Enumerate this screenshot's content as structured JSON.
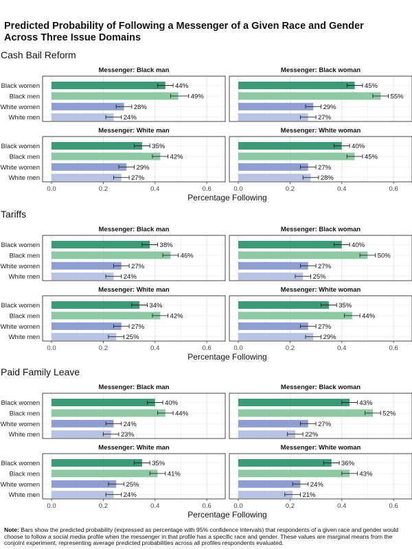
{
  "title_line1": "Predicted Probability of Following a Messenger of a Given Race and Gender",
  "title_line2": "Across Three Issue Domains",
  "x_axis_title": "Percentage Following",
  "note_label": "Note:",
  "note_text": "Bars show the predicted probability (expressed as percentage with 95% confidence intervals) that respondents of a given race and gender would choose to follow a social media profile when the messenger in that profile has a specific race and gender. These values are marginal means from the conjoint experiment, representing average predicted probabilities across all profiles respondents evaluated.",
  "colors": {
    "Black women": "#3d9a77",
    "Black men": "#8ec8a4",
    "White women": "#8f9ecf",
    "White men": "#b8c2e2"
  },
  "chart_data": {
    "type": "bar",
    "orientation": "horizontal",
    "categories": [
      "Black women",
      "Black men",
      "White women",
      "White men"
    ],
    "xlim": [
      0,
      0.65
    ],
    "xticks": [
      0.0,
      0.2,
      0.4,
      0.6
    ],
    "xtick_labels": [
      "0.0",
      "0.2",
      "0.4",
      "0.6"
    ],
    "xlabel": "Percentage Following",
    "grid": true,
    "domains": [
      {
        "name": "Cash Bail Reform",
        "facets": [
          {
            "title": "Messenger: Black man",
            "values": [
              0.44,
              0.49,
              0.28,
              0.24
            ],
            "labels": [
              "44%",
              "49%",
              "28%",
              "24%"
            ],
            "ci": [
              [
                0.41,
                0.47
              ],
              [
                0.46,
                0.53
              ],
              [
                0.25,
                0.31
              ],
              [
                0.21,
                0.27
              ]
            ]
          },
          {
            "title": "Messenger: Black woman",
            "values": [
              0.45,
              0.55,
              0.29,
              0.27
            ],
            "labels": [
              "45%",
              "55%",
              "29%",
              "27%"
            ],
            "ci": [
              [
                0.42,
                0.48
              ],
              [
                0.52,
                0.58
              ],
              [
                0.26,
                0.32
              ],
              [
                0.24,
                0.3
              ]
            ]
          },
          {
            "title": "Messenger: White man",
            "values": [
              0.35,
              0.42,
              0.29,
              0.27
            ],
            "labels": [
              "35%",
              "42%",
              "29%",
              "27%"
            ],
            "ci": [
              [
                0.32,
                0.38
              ],
              [
                0.39,
                0.45
              ],
              [
                0.26,
                0.32
              ],
              [
                0.24,
                0.3
              ]
            ]
          },
          {
            "title": "Messenger: White woman",
            "values": [
              0.4,
              0.45,
              0.27,
              0.28
            ],
            "labels": [
              "40%",
              "45%",
              "27%",
              "28%"
            ],
            "ci": [
              [
                0.37,
                0.43
              ],
              [
                0.42,
                0.48
              ],
              [
                0.24,
                0.3
              ],
              [
                0.25,
                0.31
              ]
            ]
          }
        ]
      },
      {
        "name": "Tariffs",
        "facets": [
          {
            "title": "Messenger: Black man",
            "values": [
              0.38,
              0.46,
              0.27,
              0.24
            ],
            "labels": [
              "38%",
              "46%",
              "27%",
              "24%"
            ],
            "ci": [
              [
                0.35,
                0.41
              ],
              [
                0.43,
                0.49
              ],
              [
                0.24,
                0.3
              ],
              [
                0.21,
                0.27
              ]
            ]
          },
          {
            "title": "Messenger: Black woman",
            "values": [
              0.4,
              0.5,
              0.27,
              0.25
            ],
            "labels": [
              "40%",
              "50%",
              "27%",
              "25%"
            ],
            "ci": [
              [
                0.37,
                0.43
              ],
              [
                0.47,
                0.53
              ],
              [
                0.24,
                0.3
              ],
              [
                0.22,
                0.28
              ]
            ]
          },
          {
            "title": "Messenger: White man",
            "values": [
              0.34,
              0.42,
              0.27,
              0.25
            ],
            "labels": [
              "34%",
              "42%",
              "27%",
              "25%"
            ],
            "ci": [
              [
                0.31,
                0.37
              ],
              [
                0.39,
                0.45
              ],
              [
                0.24,
                0.3
              ],
              [
                0.22,
                0.28
              ]
            ]
          },
          {
            "title": "Messenger: White woman",
            "values": [
              0.35,
              0.44,
              0.27,
              0.29
            ],
            "labels": [
              "35%",
              "44%",
              "27%",
              "29%"
            ],
            "ci": [
              [
                0.32,
                0.38
              ],
              [
                0.41,
                0.47
              ],
              [
                0.24,
                0.3
              ],
              [
                0.26,
                0.32
              ]
            ]
          }
        ]
      },
      {
        "name": "Paid Family Leave",
        "facets": [
          {
            "title": "Messenger: Black man",
            "values": [
              0.4,
              0.44,
              0.24,
              0.23
            ],
            "labels": [
              "40%",
              "44%",
              "24%",
              "23%"
            ],
            "ci": [
              [
                0.37,
                0.43
              ],
              [
                0.41,
                0.47
              ],
              [
                0.21,
                0.27
              ],
              [
                0.2,
                0.26
              ]
            ]
          },
          {
            "title": "Messenger: Black woman",
            "values": [
              0.43,
              0.52,
              0.27,
              0.22
            ],
            "labels": [
              "43%",
              "52%",
              "27%",
              "22%"
            ],
            "ci": [
              [
                0.4,
                0.46
              ],
              [
                0.49,
                0.55
              ],
              [
                0.24,
                0.3
              ],
              [
                0.19,
                0.25
              ]
            ]
          },
          {
            "title": "Messenger: White man",
            "values": [
              0.35,
              0.41,
              0.25,
              0.24
            ],
            "labels": [
              "35%",
              "41%",
              "25%",
              "24%"
            ],
            "ci": [
              [
                0.32,
                0.38
              ],
              [
                0.38,
                0.44
              ],
              [
                0.22,
                0.28
              ],
              [
                0.21,
                0.27
              ]
            ]
          },
          {
            "title": "Messenger: White woman",
            "values": [
              0.36,
              0.43,
              0.24,
              0.21
            ],
            "labels": [
              "36%",
              "43%",
              "24%",
              "21%"
            ],
            "ci": [
              [
                0.33,
                0.39
              ],
              [
                0.4,
                0.46
              ],
              [
                0.21,
                0.27
              ],
              [
                0.18,
                0.24
              ]
            ]
          }
        ]
      }
    ]
  }
}
